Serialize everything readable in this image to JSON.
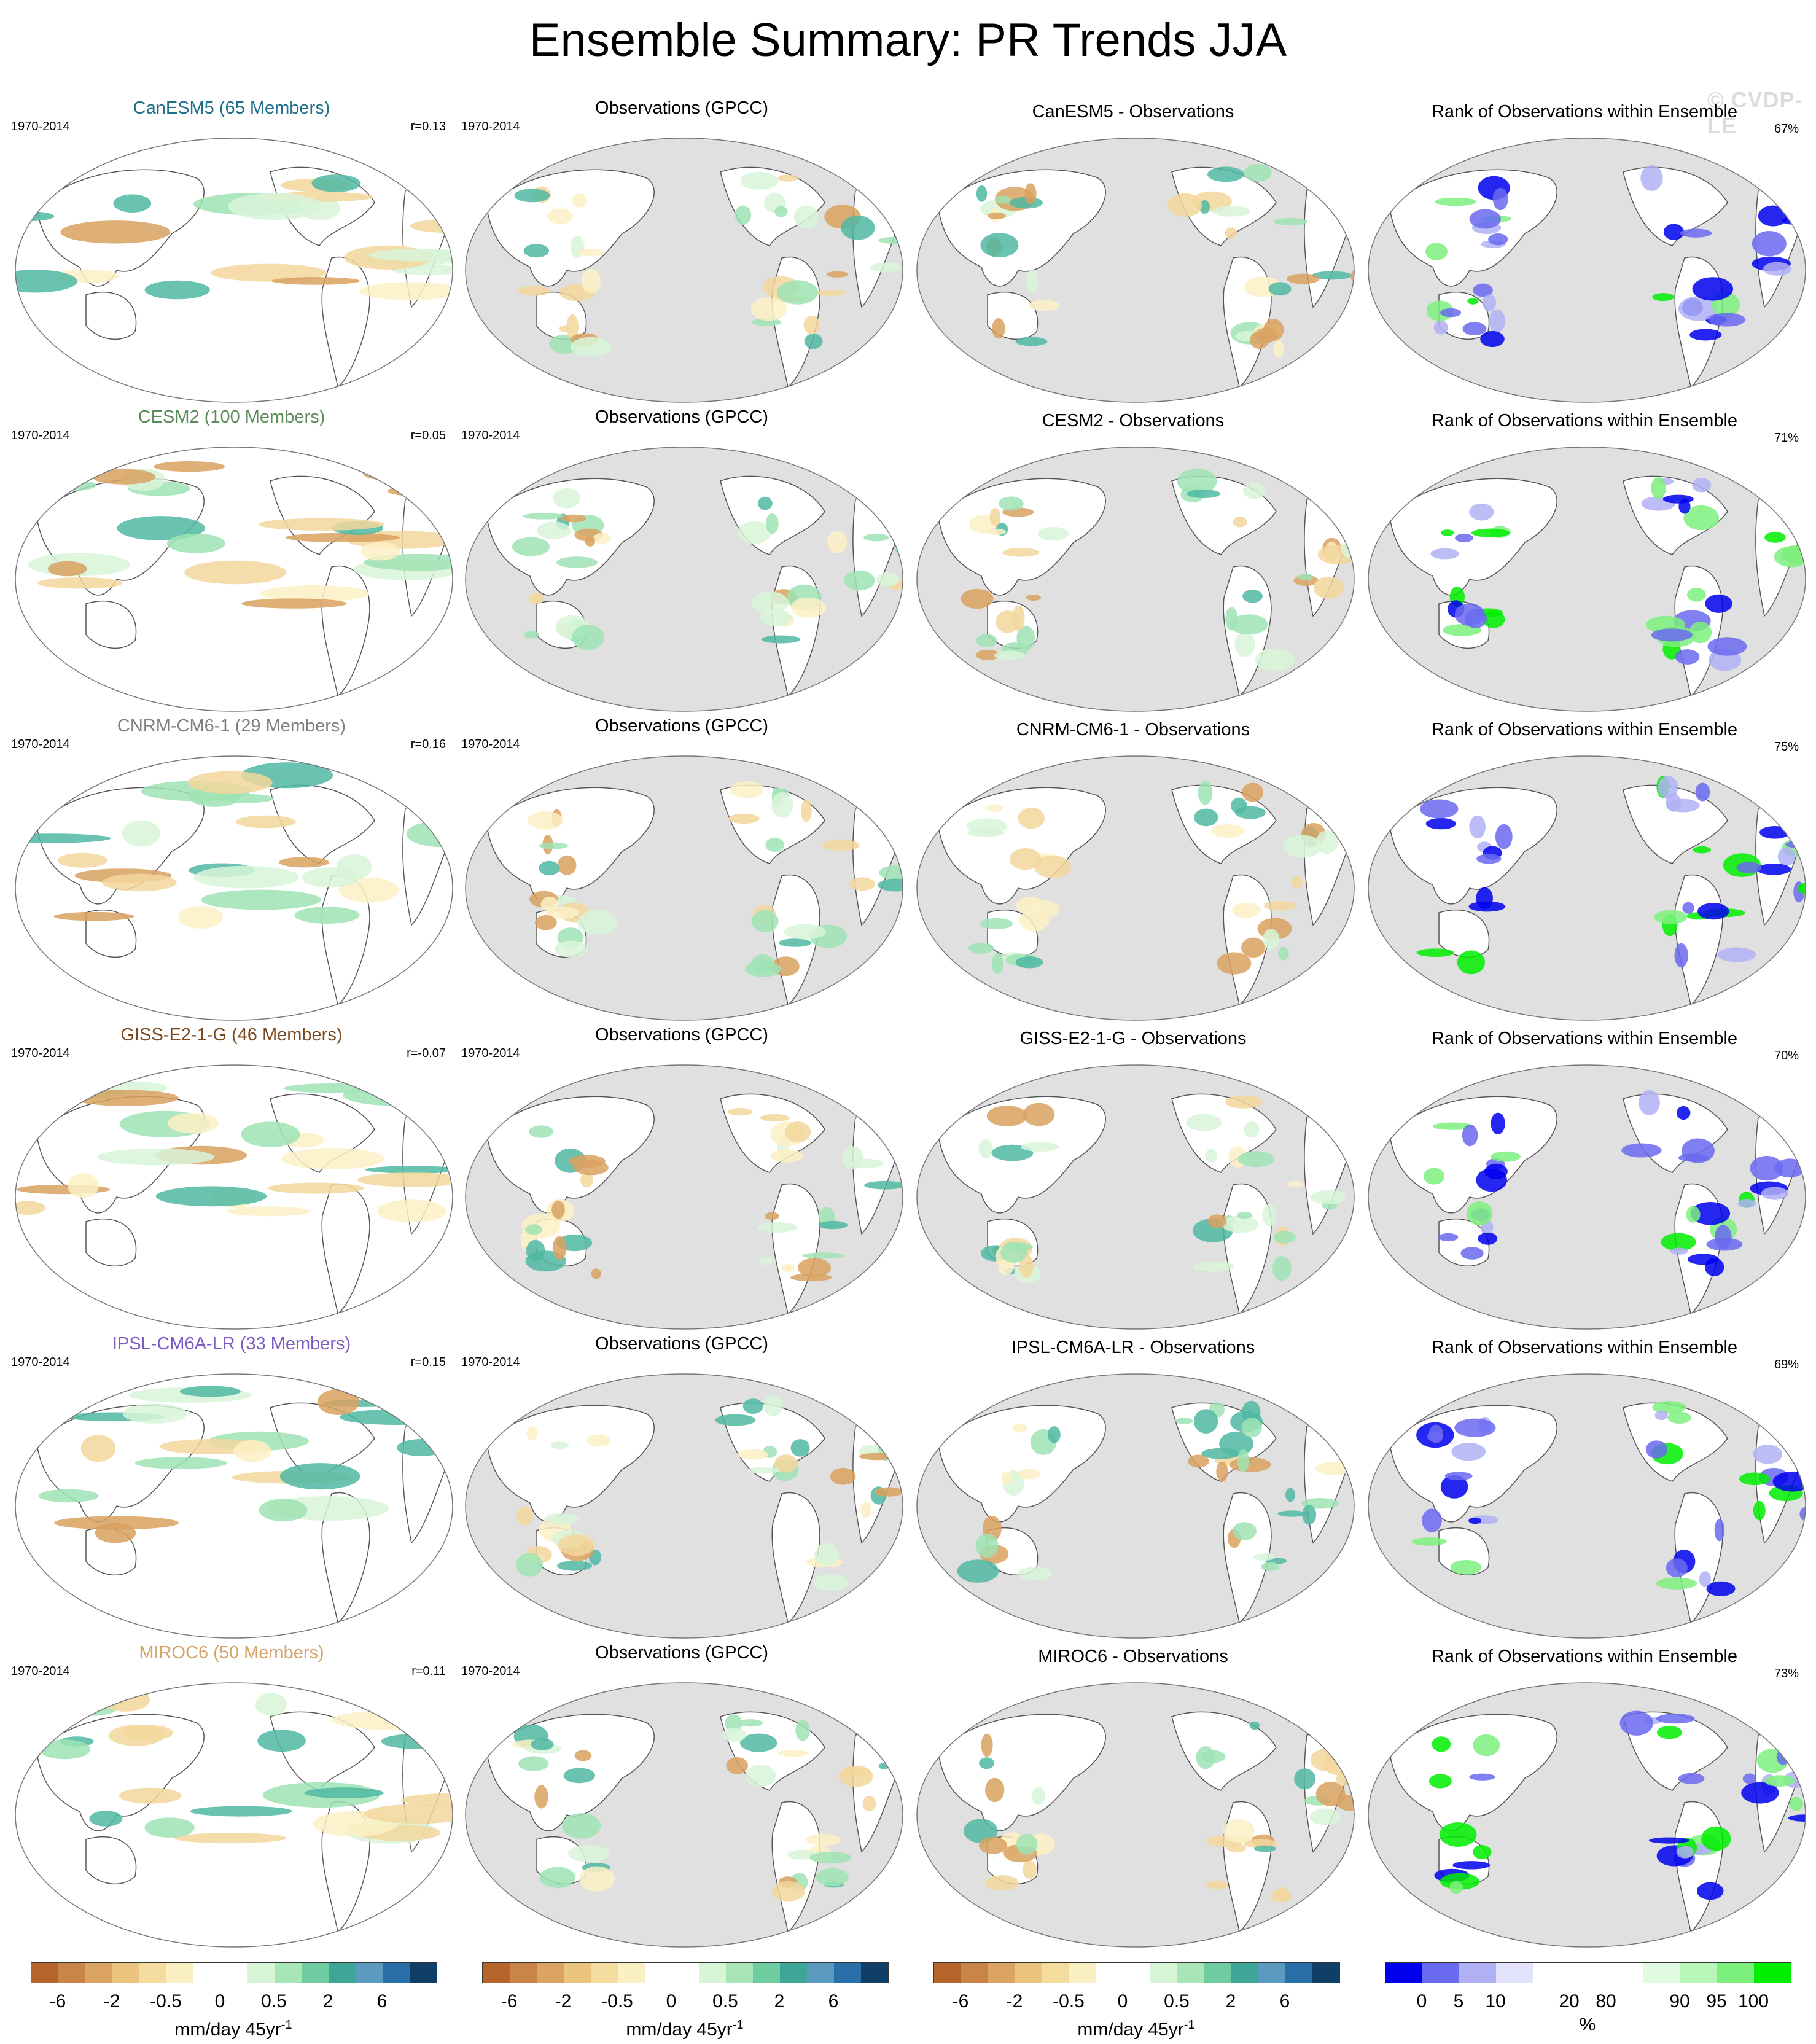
{
  "title": "Ensemble Summary: PR Trends JJA",
  "watermark": "© CVDP-LE",
  "rows": [
    {
      "model_title": "CanESM5 (65 Members)",
      "model_color": "#1f6f8b",
      "period": "1970-2014",
      "corr": "r=0.13",
      "obs_title": "Observations (GPCC)",
      "diff_title": "CanESM5 - Observations",
      "rank_title": "Rank of Observations within Ensemble",
      "rank_pct": "67%"
    },
    {
      "model_title": "CESM2 (100 Members)",
      "model_color": "#5b8c5a",
      "period": "1970-2014",
      "corr": "r=0.05",
      "obs_title": "Observations (GPCC)",
      "diff_title": "CESM2 - Observations",
      "rank_title": "Rank of Observations within Ensemble",
      "rank_pct": "71%"
    },
    {
      "model_title": "CNRM-CM6-1 (29 Members)",
      "model_color": "#808080",
      "period": "1970-2014",
      "corr": "r=0.16",
      "obs_title": "Observations (GPCC)",
      "diff_title": "CNRM-CM6-1 - Observations",
      "rank_title": "Rank of Observations within Ensemble",
      "rank_pct": "75%"
    },
    {
      "model_title": "GISS-E2-1-G (46 Members)",
      "model_color": "#7a4a1e",
      "period": "1970-2014",
      "corr": "r=-0.07",
      "obs_title": "Observations (GPCC)",
      "diff_title": "GISS-E2-1-G - Observations",
      "rank_title": "Rank of Observations within Ensemble",
      "rank_pct": "70%"
    },
    {
      "model_title": "IPSL-CM6A-LR (33 Members)",
      "model_color": "#7b5cc4",
      "period": "1970-2014",
      "corr": "r=0.15",
      "obs_title": "Observations (GPCC)",
      "diff_title": "IPSL-CM6A-LR - Observations",
      "rank_title": "Rank of Observations within Ensemble",
      "rank_pct": "69%"
    },
    {
      "model_title": "MIROC6 (50 Members)",
      "model_color": "#d4a56a",
      "period": "1970-2014",
      "corr": "r=0.11",
      "obs_title": "Observations (GPCC)",
      "diff_title": "MIROC6 - Observations",
      "rank_title": "Rank of Observations within Ensemble",
      "rank_pct": "73%"
    }
  ],
  "colorbars": {
    "trend": {
      "colors": [
        "#b5652a",
        "#c98449",
        "#dba465",
        "#ebc47f",
        "#f4dc9e",
        "#fbf0c4",
        "#ffffff",
        "#ffffff",
        "#d8f5d8",
        "#a8e6b8",
        "#6fcba0",
        "#3ea696",
        "#5b9bc0",
        "#2a6fa8",
        "#0f3f66"
      ],
      "ticks": [
        "-6",
        "-2",
        "-0.5",
        "0",
        "0.5",
        "2",
        "6"
      ],
      "unit": "mm/day 45yr",
      "unit_sup": "-1"
    },
    "rank": {
      "colors": [
        "#0000ee",
        "#6a6af0",
        "#b0b0f5",
        "#e2e2fb",
        "#ffffff",
        "#ffffff",
        "#ffffff",
        "#e0fbe0",
        "#b8f5b8",
        "#7cf07c",
        "#00ee00"
      ],
      "ticks": [
        "0",
        "5",
        "10",
        "20",
        "80",
        "90",
        "95",
        "100"
      ],
      "unit": "%"
    }
  },
  "colors": {
    "land_mask": "#e0e0e0",
    "coast": "#555555",
    "green_pos": "#9fe3b4",
    "teal_pos": "#4fb9a2",
    "tan_neg": "#f2d79c",
    "brown_neg": "#d9a160",
    "rank_blue": "#0000ee",
    "rank_green": "#00ee00"
  }
}
